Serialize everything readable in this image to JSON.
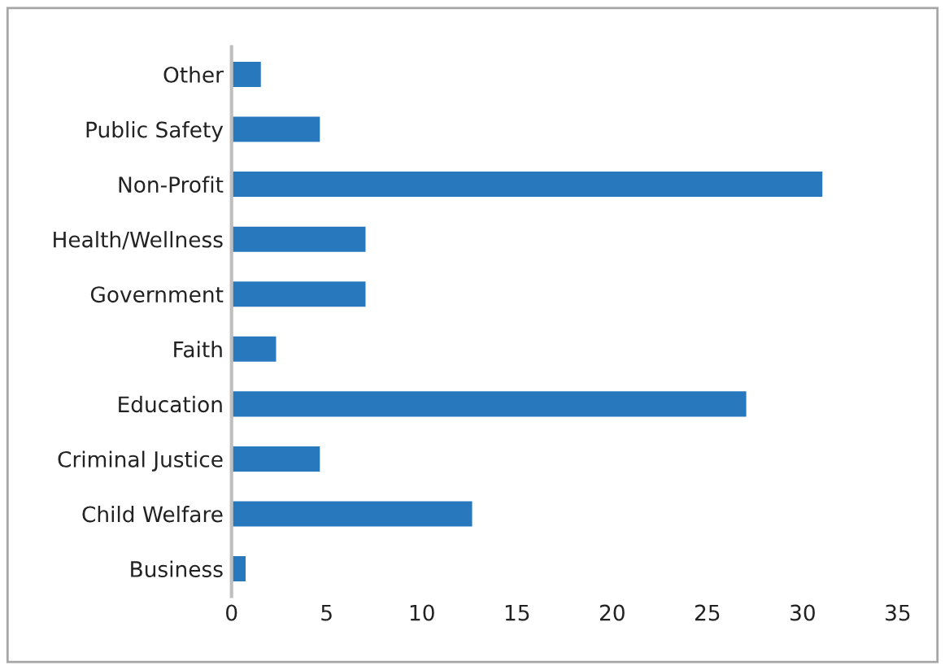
{
  "chart_data": {
    "type": "bar",
    "orientation": "horizontal",
    "categories": [
      "Other",
      "Public Safety",
      "Non-Profit",
      "Health/Wellness",
      "Government",
      "Faith",
      "Education",
      "Criminal Justice",
      "Child Welfare",
      "Business"
    ],
    "values": [
      1.6,
      4.7,
      31.1,
      7.1,
      7.1,
      2.4,
      27.1,
      4.7,
      12.7,
      0.8
    ],
    "color": "#2878bd",
    "xlim": [
      0,
      35
    ],
    "xticks": [
      0,
      5,
      10,
      15,
      20,
      25,
      30,
      35
    ],
    "grid": false,
    "legend": false
  }
}
